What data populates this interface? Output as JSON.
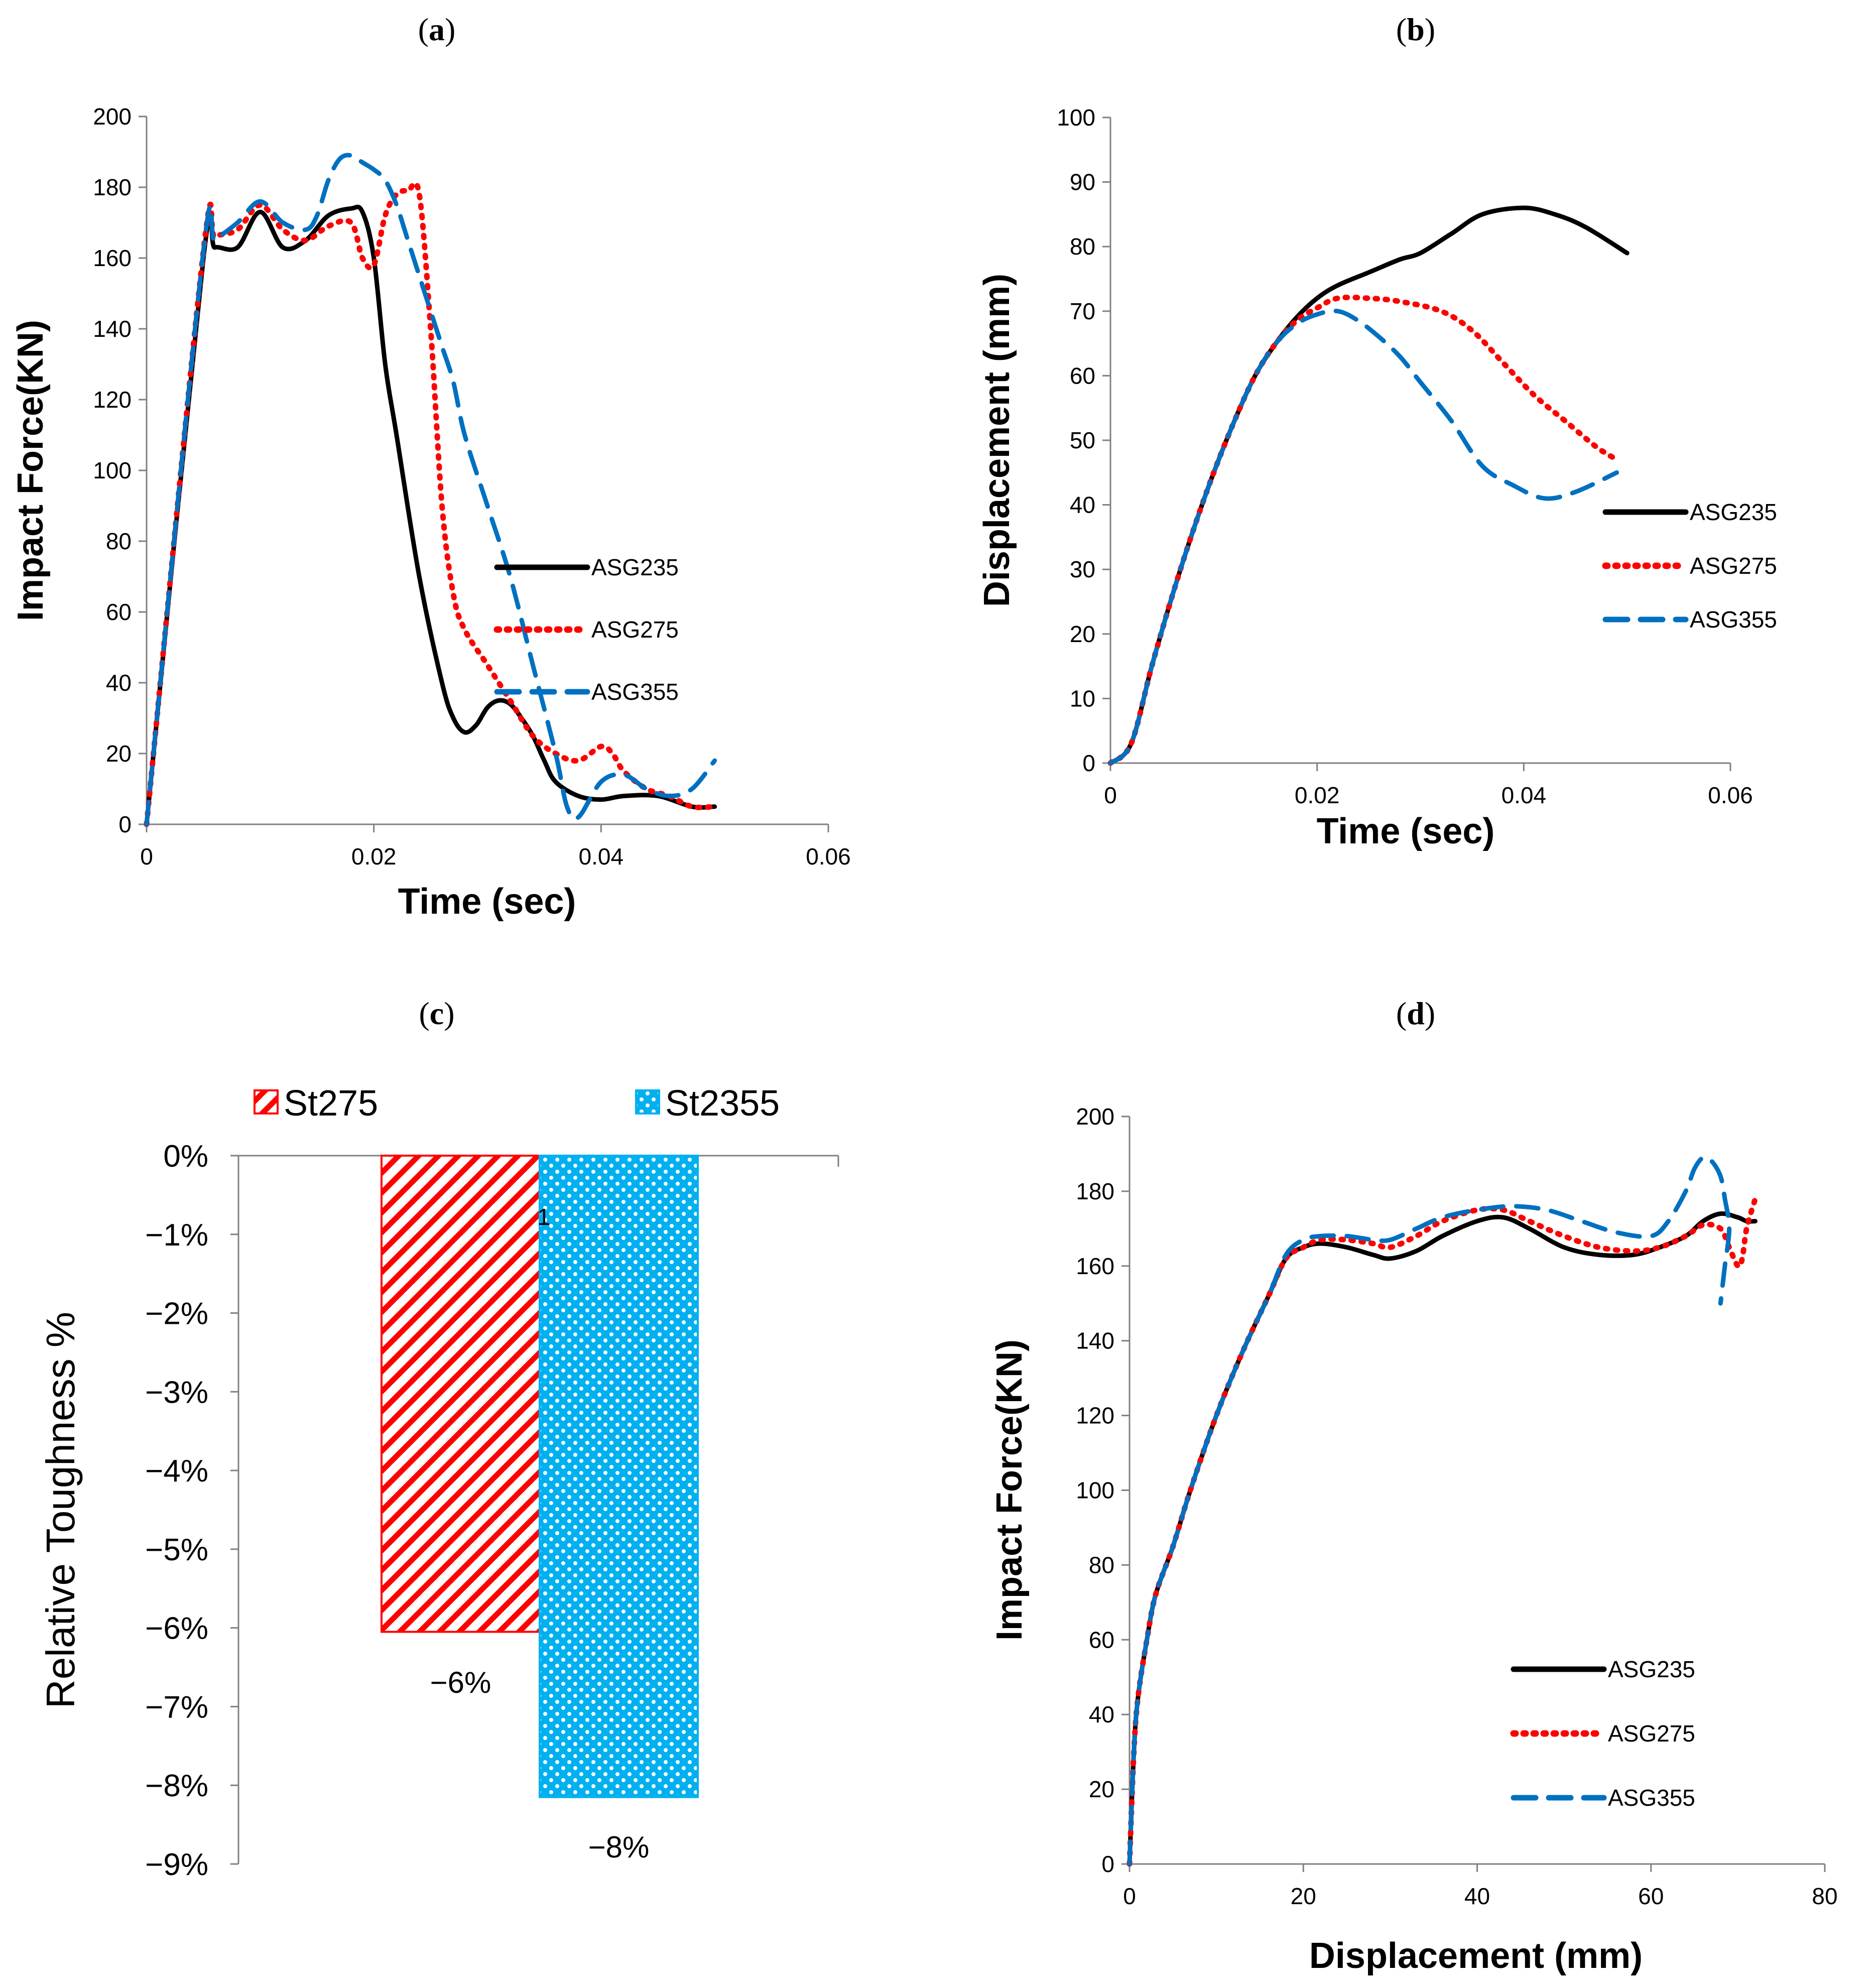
{
  "figure": {
    "panel_labels": [
      "a",
      "b",
      "c",
      "d"
    ],
    "colors": {
      "ASG235": "#000000",
      "ASG275": "#ff0000",
      "ASG355": "#0070c0",
      "St275": "#ff0000",
      "St2355": "#00b0f0",
      "axis": "#808080"
    }
  },
  "chart_data": [
    {
      "id": "a",
      "type": "line",
      "title": "",
      "xlabel": "Time (sec)",
      "ylabel": "Impact Force(KN)",
      "xlim": [
        0,
        0.06
      ],
      "ylim": [
        0,
        200
      ],
      "xticks": [
        0,
        0.02,
        0.04,
        0.06
      ],
      "xtick_labels": [
        "0",
        "0.02",
        "0.04",
        "0.06"
      ],
      "yticks": [
        0,
        20,
        40,
        60,
        80,
        100,
        120,
        140,
        160,
        180,
        200
      ],
      "ytick_labels": [
        "0",
        "20",
        "40",
        "60",
        "80",
        "100",
        "120",
        "140",
        "160",
        "180",
        "200"
      ],
      "legend_position": "right",
      "series": [
        {
          "name": "ASG235",
          "style": "solid",
          "x": [
            0,
            0.005,
            0.006,
            0.008,
            0.01,
            0.012,
            0.014,
            0.016,
            0.018,
            0.019,
            0.02,
            0.021,
            0.022,
            0.024,
            0.026,
            0.027,
            0.028,
            0.029,
            0.03,
            0.031,
            0.032,
            0.033,
            0.034,
            0.035,
            0.036,
            0.038,
            0.04,
            0.042,
            0.045,
            0.048,
            0.05
          ],
          "y": [
            0,
            160,
            163,
            163,
            173,
            163,
            165,
            172,
            174,
            173,
            160,
            130,
            110,
            70,
            40,
            30,
            26,
            28,
            33,
            35,
            34,
            30,
            25,
            18,
            12,
            8,
            7,
            8,
            8,
            5,
            5
          ]
        },
        {
          "name": "ASG275",
          "style": "dotted",
          "x": [
            0,
            0.005,
            0.006,
            0.008,
            0.01,
            0.012,
            0.014,
            0.016,
            0.018,
            0.019,
            0.02,
            0.021,
            0.022,
            0.023,
            0.024,
            0.025,
            0.026,
            0.027,
            0.028,
            0.03,
            0.032,
            0.034,
            0.036,
            0.038,
            0.04,
            0.041,
            0.042,
            0.044,
            0.046,
            0.048,
            0.05
          ],
          "y": [
            0,
            162,
            166,
            168,
            175,
            168,
            165,
            169,
            170,
            160,
            158,
            172,
            178,
            179,
            178,
            140,
            90,
            65,
            55,
            45,
            35,
            25,
            20,
            18,
            22,
            20,
            15,
            10,
            8,
            5,
            5
          ]
        },
        {
          "name": "ASG355",
          "style": "dashed",
          "x": [
            0,
            0.005,
            0.006,
            0.008,
            0.01,
            0.012,
            0.014,
            0.015,
            0.016,
            0.017,
            0.018,
            0.019,
            0.02,
            0.021,
            0.022,
            0.023,
            0.024,
            0.025,
            0.026,
            0.027,
            0.028,
            0.03,
            0.032,
            0.034,
            0.036,
            0.037,
            0.038,
            0.04,
            0.042,
            0.044,
            0.046,
            0.048,
            0.05
          ],
          "y": [
            0,
            162,
            165,
            170,
            176,
            170,
            168,
            172,
            182,
            188,
            189,
            187,
            185,
            182,
            175,
            165,
            155,
            145,
            135,
            125,
            110,
            90,
            70,
            45,
            20,
            5,
            2,
            12,
            14,
            10,
            8,
            10,
            18
          ]
        }
      ]
    },
    {
      "id": "b",
      "type": "line",
      "title": "",
      "xlabel": "Time (sec)",
      "ylabel": "Displacement (mm)",
      "xlim": [
        0,
        0.06
      ],
      "ylim": [
        0,
        100
      ],
      "xticks": [
        0,
        0.02,
        0.04,
        0.06
      ],
      "xtick_labels": [
        "0",
        "0.02",
        "0.04",
        "0.06"
      ],
      "yticks": [
        0,
        10,
        20,
        30,
        40,
        50,
        60,
        70,
        80,
        90,
        100
      ],
      "ytick_labels": [
        "0",
        "10",
        "20",
        "30",
        "40",
        "50",
        "60",
        "70",
        "80",
        "90",
        "100"
      ],
      "legend_position": "right",
      "series": [
        {
          "name": "ASG235",
          "style": "solid",
          "x": [
            0,
            0.002,
            0.004,
            0.006,
            0.008,
            0.01,
            0.012,
            0.014,
            0.016,
            0.018,
            0.02,
            0.022,
            0.025,
            0.028,
            0.03,
            0.033,
            0.036,
            0.04,
            0.043,
            0.046,
            0.05
          ],
          "y": [
            0,
            3,
            15,
            26,
            36,
            45,
            53,
            60,
            65,
            69,
            72,
            74,
            76,
            78,
            79,
            82,
            85,
            86,
            85,
            83,
            79
          ]
        },
        {
          "name": "ASG275",
          "style": "dotted",
          "x": [
            0,
            0.002,
            0.004,
            0.006,
            0.008,
            0.01,
            0.012,
            0.014,
            0.016,
            0.018,
            0.02,
            0.022,
            0.025,
            0.028,
            0.032,
            0.035,
            0.038,
            0.041,
            0.044,
            0.047,
            0.049
          ],
          "y": [
            0,
            3,
            15,
            26,
            36,
            45,
            53,
            60,
            65,
            68.5,
            70.5,
            72,
            72,
            71.5,
            70,
            67,
            62,
            57,
            53,
            49,
            47
          ]
        },
        {
          "name": "ASG355",
          "style": "dashed",
          "x": [
            0,
            0.002,
            0.004,
            0.006,
            0.008,
            0.01,
            0.012,
            0.014,
            0.016,
            0.018,
            0.02,
            0.022,
            0.024,
            0.026,
            0.028,
            0.03,
            0.033,
            0.036,
            0.039,
            0.042,
            0.045,
            0.049
          ],
          "y": [
            0,
            3,
            15,
            26,
            36,
            45,
            53,
            60,
            65,
            68,
            69.5,
            70,
            68.5,
            66,
            63,
            59,
            53,
            46,
            43,
            41,
            42,
            45
          ]
        }
      ]
    },
    {
      "id": "c",
      "type": "bar",
      "title": "",
      "xlabel": "",
      "ylabel": "Relative Toughness %",
      "ylim": [
        -9,
        0
      ],
      "yticks": [
        0,
        -1,
        -2,
        -3,
        -4,
        -5,
        -6,
        -7,
        -8,
        -9
      ],
      "ytick_labels": [
        "0%",
        "−1%",
        "−2%",
        "−3%",
        "−4%",
        "−5%",
        "−6%",
        "−7%",
        "−8%",
        "−9%"
      ],
      "categories": [
        "1"
      ],
      "legend_position": "top",
      "series": [
        {
          "name": "St275",
          "values": [
            -6.05
          ],
          "label": "−6%",
          "pattern": "diagonal-hatch"
        },
        {
          "name": "St2355",
          "values": [
            -8.15
          ],
          "label": "−8%",
          "pattern": "checker"
        }
      ]
    },
    {
      "id": "d",
      "type": "line",
      "title": "",
      "xlabel": "Displacement (mm)",
      "ylabel": "Impact Force(KN)",
      "xlim": [
        0,
        80
      ],
      "ylim": [
        0,
        200
      ],
      "xticks": [
        0,
        20,
        40,
        60,
        80
      ],
      "xtick_labels": [
        "0",
        "20",
        "40",
        "60",
        "80"
      ],
      "yticks": [
        0,
        20,
        40,
        60,
        80,
        100,
        120,
        140,
        160,
        180,
        200
      ],
      "ytick_labels": [
        "0",
        "20",
        "40",
        "60",
        "80",
        "100",
        "120",
        "140",
        "160",
        "180",
        "200"
      ],
      "legend_position": "bottom-right",
      "series": [
        {
          "name": "ASG235",
          "style": "solid",
          "x": [
            0,
            0.5,
            1,
            2,
            3,
            5,
            7,
            10,
            13,
            16,
            18,
            20,
            22,
            25,
            28,
            30,
            33,
            36,
            40,
            43,
            46,
            50,
            54,
            58,
            61,
            64,
            66,
            68,
            70,
            71,
            72
          ],
          "y": [
            0,
            30,
            45,
            60,
            72,
            85,
            100,
            120,
            137,
            152,
            162,
            165,
            166,
            165,
            163,
            162,
            164,
            168,
            172,
            173,
            170,
            165,
            163,
            163,
            165,
            168,
            172,
            174,
            173,
            172,
            172
          ]
        },
        {
          "name": "ASG275",
          "style": "dotted",
          "x": [
            0,
            0.5,
            1,
            2,
            3,
            5,
            7,
            10,
            13,
            16,
            18,
            20,
            22,
            25,
            28,
            30,
            33,
            36,
            40,
            43,
            46,
            50,
            54,
            58,
            61,
            64,
            66,
            68,
            69,
            70,
            70.5,
            71,
            72
          ],
          "y": [
            0,
            30,
            45,
            60,
            72,
            85,
            100,
            120,
            137,
            152,
            162,
            165,
            167,
            167,
            166,
            165,
            168,
            172,
            175,
            175,
            172,
            168,
            165,
            164,
            165,
            168,
            171,
            170,
            165,
            160,
            162,
            170,
            178
          ]
        },
        {
          "name": "ASG355",
          "style": "dashed",
          "x": [
            0,
            0.5,
            1,
            2,
            3,
            5,
            7,
            10,
            13,
            16,
            18,
            20,
            22,
            25,
            28,
            30,
            33,
            36,
            40,
            44,
            48,
            52,
            56,
            60,
            62,
            64,
            65,
            66,
            67,
            68,
            68.5,
            69,
            68.5,
            68
          ],
          "y": [
            0,
            30,
            45,
            60,
            72,
            85,
            100,
            120,
            137,
            152,
            163,
            167,
            168,
            168,
            167,
            167,
            170,
            173,
            175,
            176,
            175,
            172,
            169,
            168,
            172,
            180,
            186,
            189,
            188,
            184,
            178,
            170,
            160,
            150
          ]
        }
      ]
    }
  ]
}
